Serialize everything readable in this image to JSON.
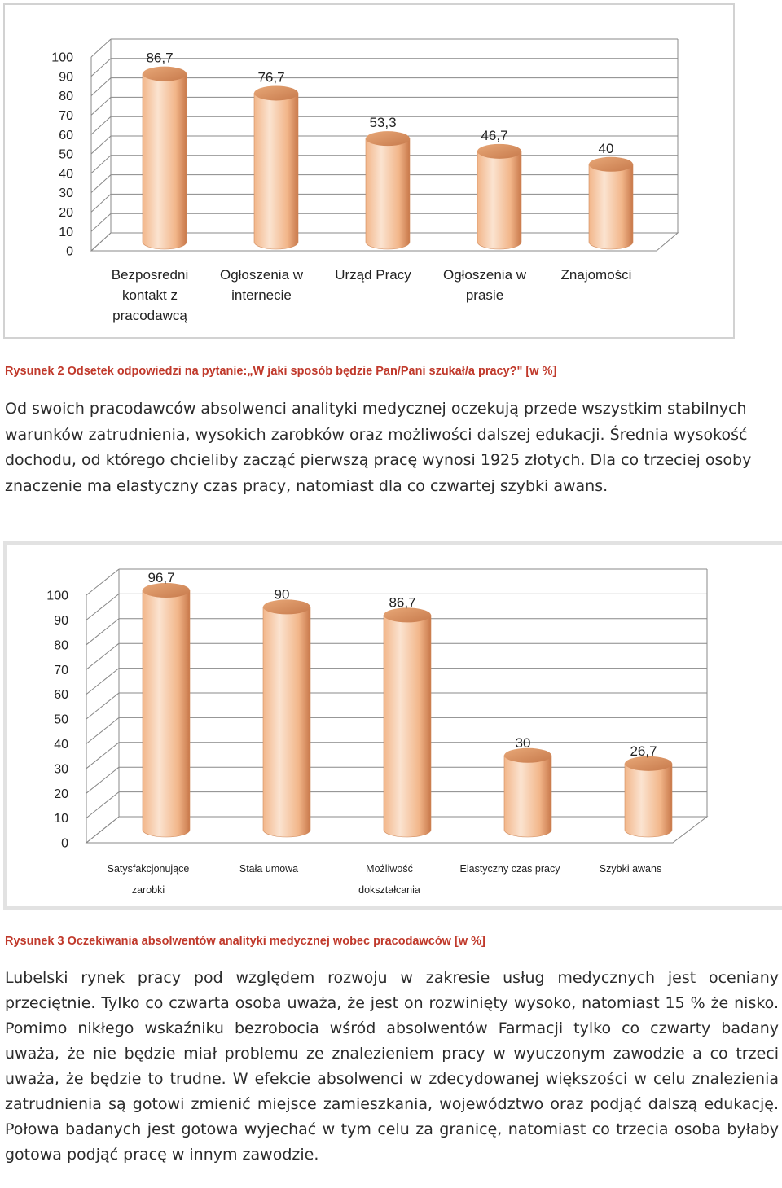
{
  "caption1": "Rysunek 2 Odsetek odpowiedzi na pytanie:„W jaki sposób będzie Pan/Pani szukał/a pracy?\" [w %]",
  "paragraph1": "Od swoich pracodawców absolwenci analityki medycznej oczekują przede wszystkim stabilnych warunków zatrudnienia, wysokich zarobków oraz możliwości dalszej edukacji. Średnia wysokość dochodu, od którego chcieliby zacząć pierwszą pracę wynosi 1925 złotych. Dla co trzeciej osoby znaczenie ma elastyczny czas pracy, natomiast dla co czwartej szybki awans.",
  "caption2": "Rysunek 3 Oczekiwania absolwentów analityki medycznej wobec pracodawców [w %]",
  "paragraph2": "Lubelski rynek pracy pod względem rozwoju w zakresie usług medycznych jest oceniany przeciętnie. Tylko co czwarta osoba uważa, że jest on rozwinięty wysoko, natomiast 15 % że nisko. Pomimo nikłego wskaźniku bezrobocia wśród absolwentów Farmacji tylko co czwarty badany uważa, że nie będzie miał problemu ze znalezieniem pracy w wyuczonym zawodzie a co trzeci uważa, że będzie to trudne. W efekcie absolwenci w zdecydowanej większości w celu znalezienia zatrudnienia są gotowi zmienić miejsce zamieszkania, województwo oraz podjąć dalszą edukację. Połowa badanych jest gotowa wyjechać w tym celu za granicę, natomiast co trzecia osoba byłaby gotowa podjąć pracę w innym zawodzie.",
  "chart_data": [
    {
      "type": "bar",
      "categories": [
        [
          "Bezposredni",
          "kontakt z",
          "pracodawcą"
        ],
        [
          "Ogłoszenia w",
          "internecie"
        ],
        [
          "Urząd Pracy"
        ],
        [
          "Ogłoszenia w",
          "prasie"
        ],
        [
          "Znajomości"
        ]
      ],
      "values": [
        86.7,
        76.7,
        53.3,
        46.7,
        40
      ],
      "value_labels": [
        "86,7",
        "76,7",
        "53,3",
        "46,7",
        "40"
      ],
      "yticks": [
        "0",
        "10",
        "20",
        "30",
        "40",
        "50",
        "60",
        "70",
        "80",
        "90",
        "100"
      ],
      "ylim": [
        0,
        100
      ],
      "bar_style": "3d-cylinder",
      "colors": {
        "bar_light": "#fbe3d0",
        "bar_mid": "#f2b68a",
        "bar_dark": "#c8784a",
        "grid": "#888888"
      }
    },
    {
      "type": "bar",
      "categories": [
        [
          "Satysfakcjonujące",
          "zarobki"
        ],
        [
          "Stała umowa"
        ],
        [
          "Możliwość",
          "dokształcania"
        ],
        [
          "Elastyczny czas pracy"
        ],
        [
          "Szybki awans"
        ]
      ],
      "values": [
        96.7,
        90,
        86.7,
        30,
        26.7
      ],
      "value_labels": [
        "96,7",
        "90",
        "86,7",
        "30",
        "26,7"
      ],
      "yticks": [
        "0",
        "10",
        "20",
        "30",
        "40",
        "50",
        "60",
        "70",
        "80",
        "90",
        "100"
      ],
      "ylim": [
        0,
        100
      ],
      "bar_style": "3d-cylinder",
      "colors": {
        "bar_light": "#fbe3d0",
        "bar_mid": "#f2b68a",
        "bar_dark": "#c8784a",
        "grid": "#888888"
      }
    }
  ]
}
